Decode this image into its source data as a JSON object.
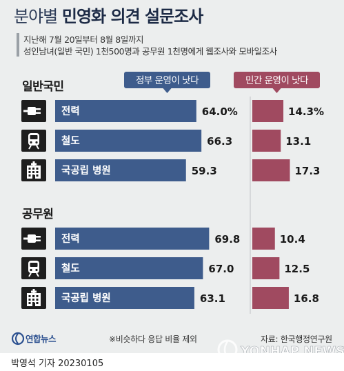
{
  "title_light": "분야별",
  "title_bold": "민영화 의견 설문조사",
  "subtitle_lines": [
    "지난해 7월 20일부터 8월 8일까지",
    "성인남녀(일반 국민) 1천500명과 공무원 1천명에게 웹조사와 모바일조사"
  ],
  "legend": {
    "government": "정부 운영이 낫다",
    "private": "민간 운영이 낫다"
  },
  "note": "※비슷하다 응답 비율 제외",
  "source": "자료: 한국행정연구원",
  "logo_text": "연합뉴스",
  "watermark_text": "YONHAP NEWS",
  "byline": "박영석 기자  20230105",
  "colors": {
    "government": "#3e5c8c",
    "private": "#a04a60",
    "panel": "#eceeee",
    "divider": "#bfc3c7"
  },
  "icons": [
    "plug-icon",
    "train-icon",
    "hospital-icon"
  ],
  "chart_data": [
    {
      "type": "bar",
      "title": "일반국민",
      "categories": [
        "전력",
        "철도",
        "국공립 병원"
      ],
      "series": [
        {
          "name": "정부 운영이 낫다",
          "values": [
            64.0,
            66.3,
            59.3
          ],
          "labels": [
            "64.0%",
            "66.3",
            "59.3"
          ]
        },
        {
          "name": "민간 운영이 낫다",
          "values": [
            14.3,
            13.1,
            17.3
          ],
          "labels": [
            "14.3%",
            "13.1",
            "17.3"
          ]
        }
      ]
    },
    {
      "type": "bar",
      "title": "공무원",
      "categories": [
        "전력",
        "철도",
        "국공립 병원"
      ],
      "series": [
        {
          "name": "정부 운영이 낫다",
          "values": [
            69.8,
            67.0,
            63.1
          ],
          "labels": [
            "69.8",
            "67.0",
            "63.1"
          ]
        },
        {
          "name": "민간 운영이 낫다",
          "values": [
            10.4,
            12.5,
            16.8
          ],
          "labels": [
            "10.4",
            "12.5",
            "16.8"
          ]
        }
      ]
    }
  ]
}
